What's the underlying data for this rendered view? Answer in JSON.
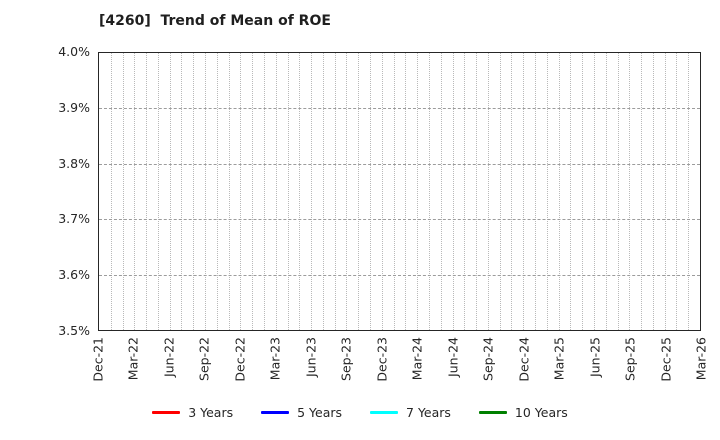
{
  "chart_data": {
    "type": "line",
    "title": "[4260]  Trend of Mean of ROE",
    "xlabel": "",
    "ylabel": "",
    "ylim": [
      3.5,
      4.0
    ],
    "ytick_step": 0.1,
    "y_unit": "%",
    "y_tick_labels": [
      "4.0%",
      "3.9%",
      "3.8%",
      "3.7%",
      "3.6%",
      "3.5%"
    ],
    "x_tick_labels": [
      "Dec-21",
      "Mar-22",
      "Jun-22",
      "Sep-22",
      "Dec-22",
      "Mar-23",
      "Jun-23",
      "Sep-23",
      "Dec-23",
      "Mar-24",
      "Jun-24",
      "Sep-24",
      "Dec-24",
      "Mar-25",
      "Jun-25",
      "Sep-25",
      "Dec-25",
      "Mar-26"
    ],
    "x_tick_rotation_deg": 90,
    "months_between_ticks": 3,
    "grid": {
      "vertical": "monthly dotted",
      "horizontal": "dashed at each 0.1% tick"
    },
    "legend_position": "bottom",
    "plot_is_empty": true,
    "series": [
      {
        "name": "3 Years",
        "color": "#ff0000",
        "values": []
      },
      {
        "name": "5 Years",
        "color": "#0000ff",
        "values": []
      },
      {
        "name": "7 Years",
        "color": "#00ffff",
        "values": []
      },
      {
        "name": "10 Years",
        "color": "#008000",
        "values": []
      }
    ]
  },
  "colors": {
    "background": "#ffffff",
    "axis_border": "#262626",
    "text": "#262626",
    "vgrid": "#b9b9b9",
    "hgrid": "#9c9c9c"
  }
}
